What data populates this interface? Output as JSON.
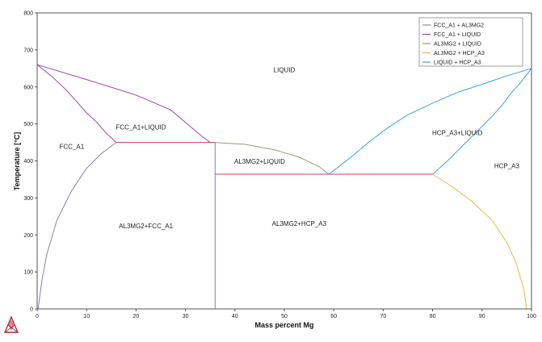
{
  "chart_data": {
    "type": "line",
    "xlabel": "Mass percent Mg",
    "ylabel": "Temperature [°C]",
    "xlim": [
      0,
      100
    ],
    "ylim": [
      0,
      800
    ],
    "xticks": [
      0,
      10,
      20,
      30,
      40,
      50,
      60,
      70,
      80,
      90,
      100
    ],
    "yticks": [
      0,
      100,
      200,
      300,
      400,
      500,
      600,
      700,
      800
    ],
    "grid": false,
    "legend_position": "top-right",
    "series": [
      {
        "name": "FCC_A1 + AL3MG2",
        "color": "#8a7fb0",
        "segments": [
          [
            [
              16,
              450
            ],
            [
              15,
              440
            ],
            [
              13,
              420
            ],
            [
              10,
              380
            ],
            [
              7,
              320
            ],
            [
              4,
              240
            ],
            [
              2,
              150
            ],
            [
              1,
              80
            ],
            [
              0.4,
              20
            ],
            [
              0.2,
              0
            ]
          ],
          [
            [
              36,
              450
            ],
            [
              36,
              0
            ]
          ]
        ]
      },
      {
        "name": "FCC_A1 + LIQUID",
        "color": "#9a4aa6",
        "segments": [
          [
            [
              0,
              660
            ],
            [
              3,
              628
            ],
            [
              6,
              590
            ],
            [
              8,
              560
            ],
            [
              10,
              530
            ],
            [
              12,
              505
            ],
            [
              14,
              475
            ],
            [
              16,
              450
            ]
          ],
          [
            [
              0,
              660
            ],
            [
              10,
              620
            ],
            [
              20,
              578
            ],
            [
              27,
              538
            ],
            [
              33,
              470
            ],
            [
              35,
              450
            ]
          ]
        ]
      },
      {
        "name": "AL3MG2 + LIQUID",
        "color": "#9a9a78",
        "segments": [
          [
            [
              36,
              450
            ],
            [
              42,
              445
            ],
            [
              48,
              430
            ],
            [
              53,
              410
            ],
            [
              57,
              385
            ],
            [
              59,
              364
            ]
          ]
        ]
      },
      {
        "name": "AL3MG2 + HCP_A3",
        "color": "#e8b84e",
        "segments": [
          [
            [
              80,
              364
            ],
            [
              84,
              330
            ],
            [
              88,
              290
            ],
            [
              92,
              240
            ],
            [
              95,
              180
            ],
            [
              97,
              120
            ],
            [
              98.5,
              50
            ],
            [
              99,
              0
            ]
          ]
        ]
      },
      {
        "name": "LIQUID + HCP_A3",
        "color": "#3aa6d6",
        "segments": [
          [
            [
              59,
              364
            ],
            [
              63,
              405
            ],
            [
              67,
              450
            ],
            [
              71,
              490
            ],
            [
              75,
              525
            ],
            [
              80,
              556
            ],
            [
              85,
              585
            ],
            [
              90,
              607
            ],
            [
              95,
              630
            ],
            [
              100,
              650
            ]
          ],
          [
            [
              80,
              364
            ],
            [
              83,
              400
            ],
            [
              86,
              440
            ],
            [
              89,
              480
            ],
            [
              92,
              520
            ],
            [
              94,
              550
            ],
            [
              96,
              585
            ],
            [
              98,
              615
            ],
            [
              100,
              650
            ]
          ]
        ]
      }
    ],
    "three_phase_lines": [
      {
        "color": "#c2445a",
        "x": [
          16,
          36
        ],
        "y": 450
      },
      {
        "color": "#c2445a",
        "x": [
          36,
          80
        ],
        "y": 364
      }
    ],
    "annotations": [
      {
        "text": "LIQUID",
        "x": 50,
        "y": 640
      },
      {
        "text": "FCC_A1+LIQUID",
        "x": 21,
        "y": 485
      },
      {
        "text": "FCC_A1",
        "x": 7,
        "y": 433
      },
      {
        "text": "AL3MG2+LIQUID",
        "x": 45,
        "y": 392
      },
      {
        "text": "HCP_A3+LIQUID",
        "x": 85,
        "y": 470
      },
      {
        "text": "HCP_A3",
        "x": 95,
        "y": 380
      },
      {
        "text": "AL3MG2+FCC_A1",
        "x": 22,
        "y": 218
      },
      {
        "text": "AL3MG2+HCP_A3",
        "x": 53,
        "y": 225
      }
    ]
  }
}
